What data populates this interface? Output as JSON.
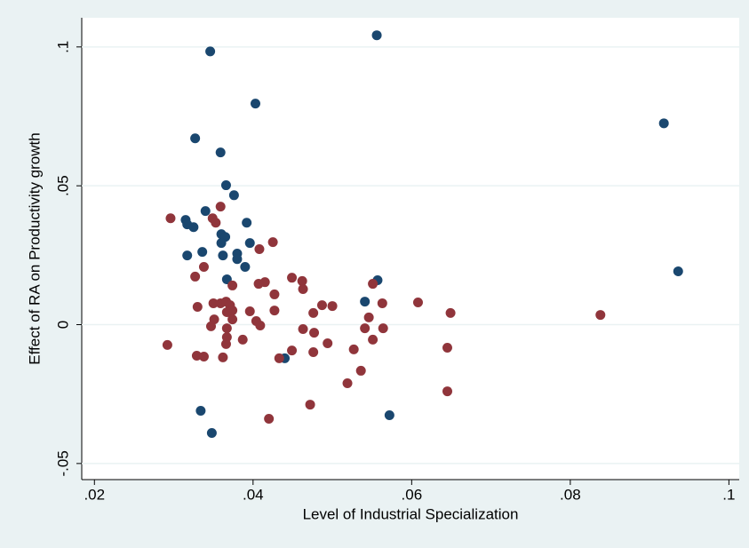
{
  "chart_data": {
    "type": "scatter",
    "x_label": "Level of Industrial Specialization",
    "y_label": "Effect of RA on Productivity growth",
    "xlim": [
      0.0184,
      0.1013
    ],
    "ylim": [
      -0.0558,
      0.1105
    ],
    "xticks": [
      {
        "value": 0.02,
        "label": ".02"
      },
      {
        "value": 0.04,
        "label": ".04"
      },
      {
        "value": 0.06,
        "label": ".06"
      },
      {
        "value": 0.08,
        "label": ".08"
      },
      {
        "value": 0.1,
        "label": ".1"
      }
    ],
    "yticks": [
      {
        "value": -0.05,
        "label": "-.05"
      },
      0,
      {
        "value": 0.05,
        "label": ".05"
      },
      {
        "value": 0.1,
        "label": ".1"
      }
    ],
    "grid": true,
    "series": [
      {
        "color": "#1a476f",
        "x": [
          0.0556,
          0.0346,
          0.0403,
          0.0918,
          0.0327,
          0.0359,
          0.0366,
          0.0376,
          0.034,
          0.0315,
          0.0317,
          0.0325,
          0.0392,
          0.036,
          0.0365,
          0.0396,
          0.036,
          0.0336,
          0.0317,
          0.0362,
          0.038,
          0.038,
          0.039,
          0.0936,
          0.0367,
          0.0557,
          0.0541,
          0.044,
          0.0334,
          0.0348,
          0.0572
        ],
        "values": [
          0.1042,
          0.0984,
          0.0796,
          0.0725,
          0.0671,
          0.062,
          0.0502,
          0.0466,
          0.0409,
          0.0377,
          0.0361,
          0.0351,
          0.0367,
          0.0326,
          0.0316,
          0.0294,
          0.0294,
          0.0262,
          0.0249,
          0.0249,
          0.0256,
          0.0236,
          0.0208,
          0.0192,
          0.0163,
          0.016,
          0.0083,
          -0.0121,
          -0.031,
          -0.039,
          -0.0326
        ]
      },
      {
        "color": "#90353b",
        "x": [
          0.0296,
          0.0359,
          0.0349,
          0.0353,
          0.0425,
          0.0408,
          0.0338,
          0.0327,
          0.0374,
          0.0415,
          0.0407,
          0.0427,
          0.0449,
          0.0462,
          0.0463,
          0.0551,
          0.0608,
          0.0649,
          0.0838,
          0.033,
          0.035,
          0.0359,
          0.0366,
          0.0371,
          0.0374,
          0.0367,
          0.0351,
          0.0374,
          0.0396,
          0.0404,
          0.0409,
          0.0427,
          0.0487,
          0.05,
          0.0476,
          0.0546,
          0.0563,
          0.0564,
          0.0541,
          0.0551,
          0.0463,
          0.0477,
          0.0494,
          0.0292,
          0.0347,
          0.0367,
          0.0367,
          0.0366,
          0.0387,
          0.0449,
          0.0476,
          0.0527,
          0.0433,
          0.0329,
          0.0338,
          0.0362,
          0.0536,
          0.0519,
          0.0645,
          0.0645,
          0.0472,
          0.042
        ],
        "values": [
          0.0383,
          0.0425,
          0.0383,
          0.0367,
          0.0297,
          0.0272,
          0.0208,
          0.0173,
          0.0141,
          0.0153,
          0.0147,
          0.0109,
          0.0169,
          0.0157,
          0.0128,
          0.0147,
          0.008,
          0.0042,
          0.0035,
          0.0064,
          0.0077,
          0.0077,
          0.0083,
          0.007,
          0.0051,
          0.0045,
          0.0019,
          0.0019,
          0.0048,
          0.0013,
          -0.0003,
          0.0051,
          0.007,
          0.0067,
          0.0042,
          0.0026,
          0.0077,
          -0.0013,
          -0.0013,
          -0.0054,
          -0.0016,
          -0.0029,
          -0.0067,
          -0.0073,
          -0.0006,
          -0.0013,
          -0.0045,
          -0.007,
          -0.0054,
          -0.0093,
          -0.0099,
          -0.0089,
          -0.0121,
          -0.0112,
          -0.0115,
          -0.0118,
          -0.0166,
          -0.0211,
          -0.0083,
          -0.024,
          -0.0288,
          -0.0339
        ]
      }
    ]
  }
}
